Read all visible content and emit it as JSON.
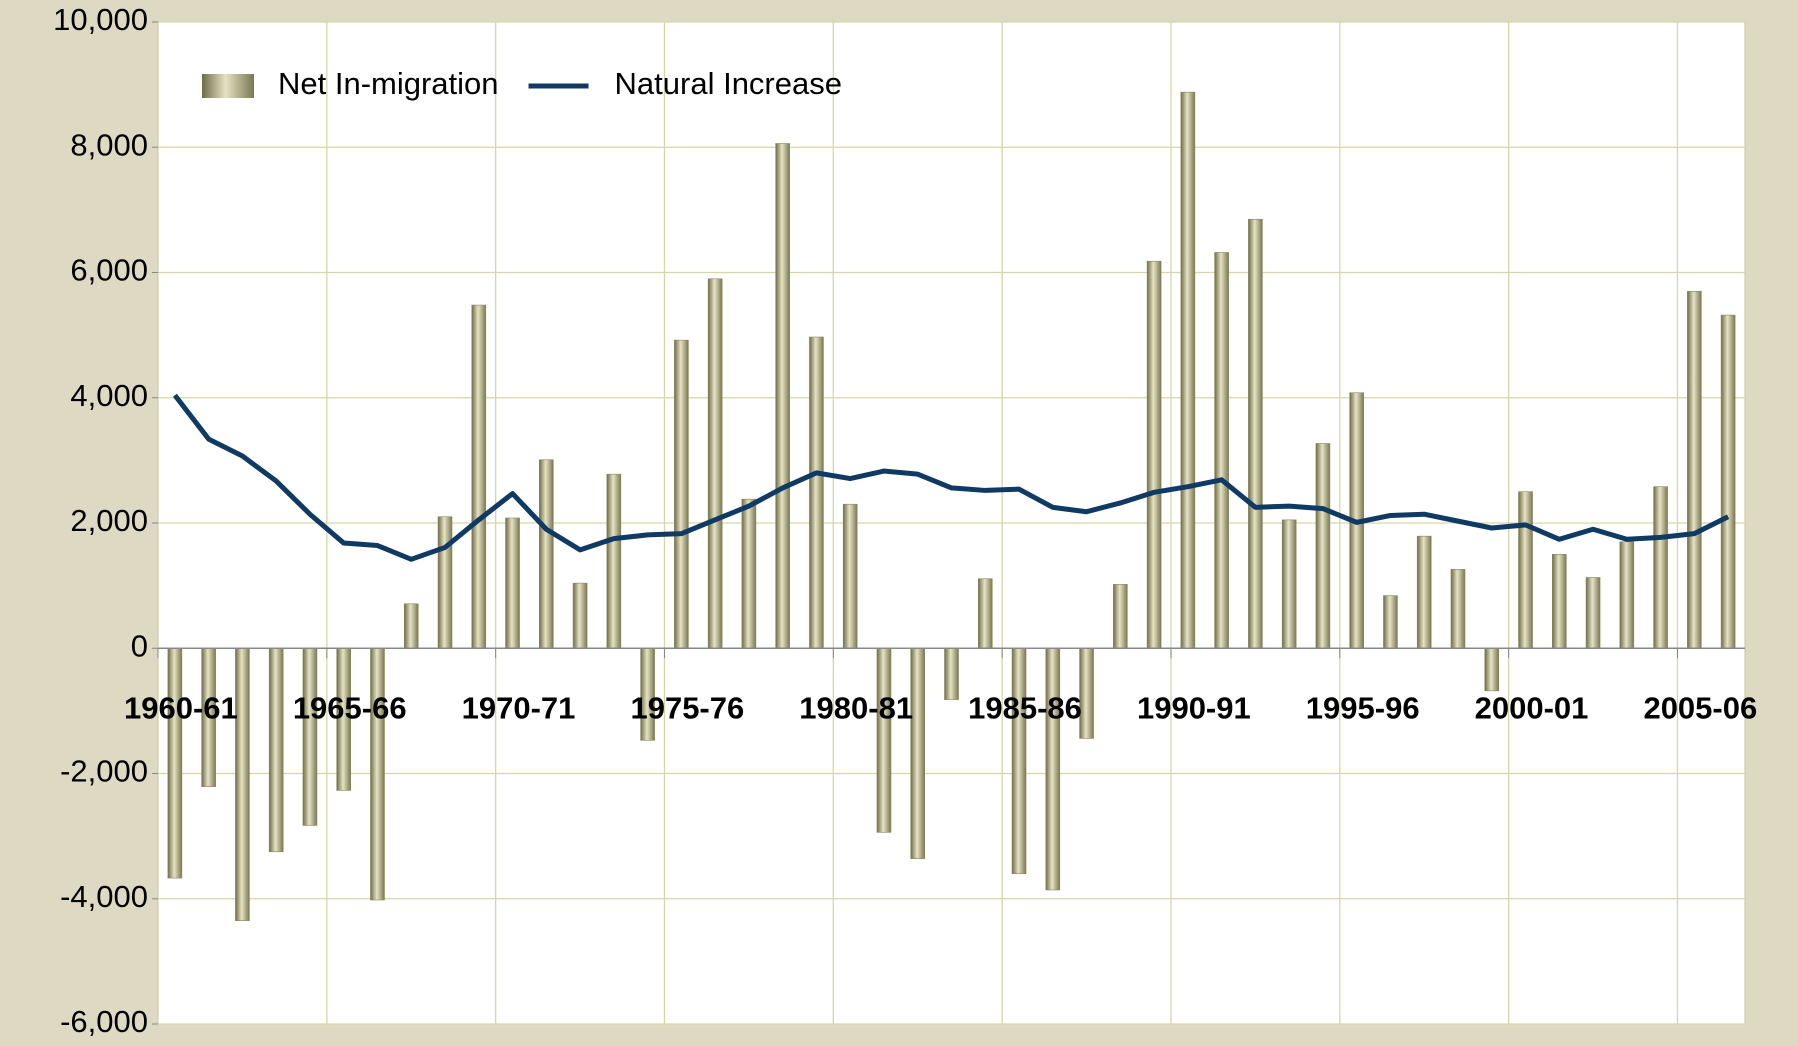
{
  "chart_data": {
    "type": "bar",
    "categories": [
      "1960-61",
      null,
      null,
      null,
      null,
      "1965-66",
      null,
      null,
      null,
      null,
      "1970-71",
      null,
      null,
      null,
      null,
      "1975-76",
      null,
      null,
      null,
      null,
      "1980-81",
      null,
      null,
      null,
      null,
      "1985-86",
      null,
      null,
      null,
      null,
      "1990-91",
      null,
      null,
      null,
      null,
      "1995-96",
      null,
      null,
      null,
      null,
      "2000-01",
      null,
      null,
      null,
      null,
      "2005-06",
      null
    ],
    "series": [
      {
        "name": "Net In-migration",
        "type": "bar",
        "color": "#a8a47a",
        "values": [
          -3670,
          -2210,
          -4350,
          -3250,
          -2830,
          -2270,
          -4020,
          710,
          2100,
          5480,
          2080,
          3010,
          1040,
          2780,
          -1470,
          4920,
          5900,
          2380,
          8060,
          4970,
          2300,
          -2940,
          -3360,
          -820,
          1110,
          -3600,
          -3860,
          -1440,
          1020,
          6180,
          8880,
          6320,
          6850,
          2050,
          3270,
          4080,
          840,
          1790,
          1260,
          -680,
          2500,
          1500,
          1130,
          1700,
          2580,
          5700,
          5320
        ]
      },
      {
        "name": "Natural Increase",
        "type": "line",
        "color": "#0f3a64",
        "values": [
          4040,
          3340,
          3070,
          2670,
          2140,
          1680,
          1640,
          1420,
          1610,
          2050,
          2470,
          1900,
          1570,
          1750,
          1810,
          1830,
          2050,
          2270,
          2560,
          2800,
          2710,
          2830,
          2780,
          2560,
          2520,
          2540,
          2250,
          2180,
          2320,
          2490,
          2580,
          2690,
          2250,
          2270,
          2230,
          2010,
          2120,
          2140,
          2030,
          1920,
          1970,
          1740,
          1900,
          1740,
          1770,
          1830,
          2100
        ]
      }
    ],
    "ylim": [
      -6000,
      10000
    ],
    "yticks": [
      {
        "value": -6000,
        "label": "-6,000"
      },
      {
        "value": -4000,
        "label": "-4,000"
      },
      {
        "value": -2000,
        "label": "-2,000"
      },
      0,
      {
        "value": 2000,
        "label": "2,000"
      },
      {
        "value": 4000,
        "label": "4,000"
      },
      {
        "value": 6000,
        "label": "6,000"
      },
      {
        "value": 8000,
        "label": "8,000"
      },
      {
        "value": 10000,
        "label": "10,000"
      }
    ],
    "grid": true,
    "legend": "top-left"
  }
}
